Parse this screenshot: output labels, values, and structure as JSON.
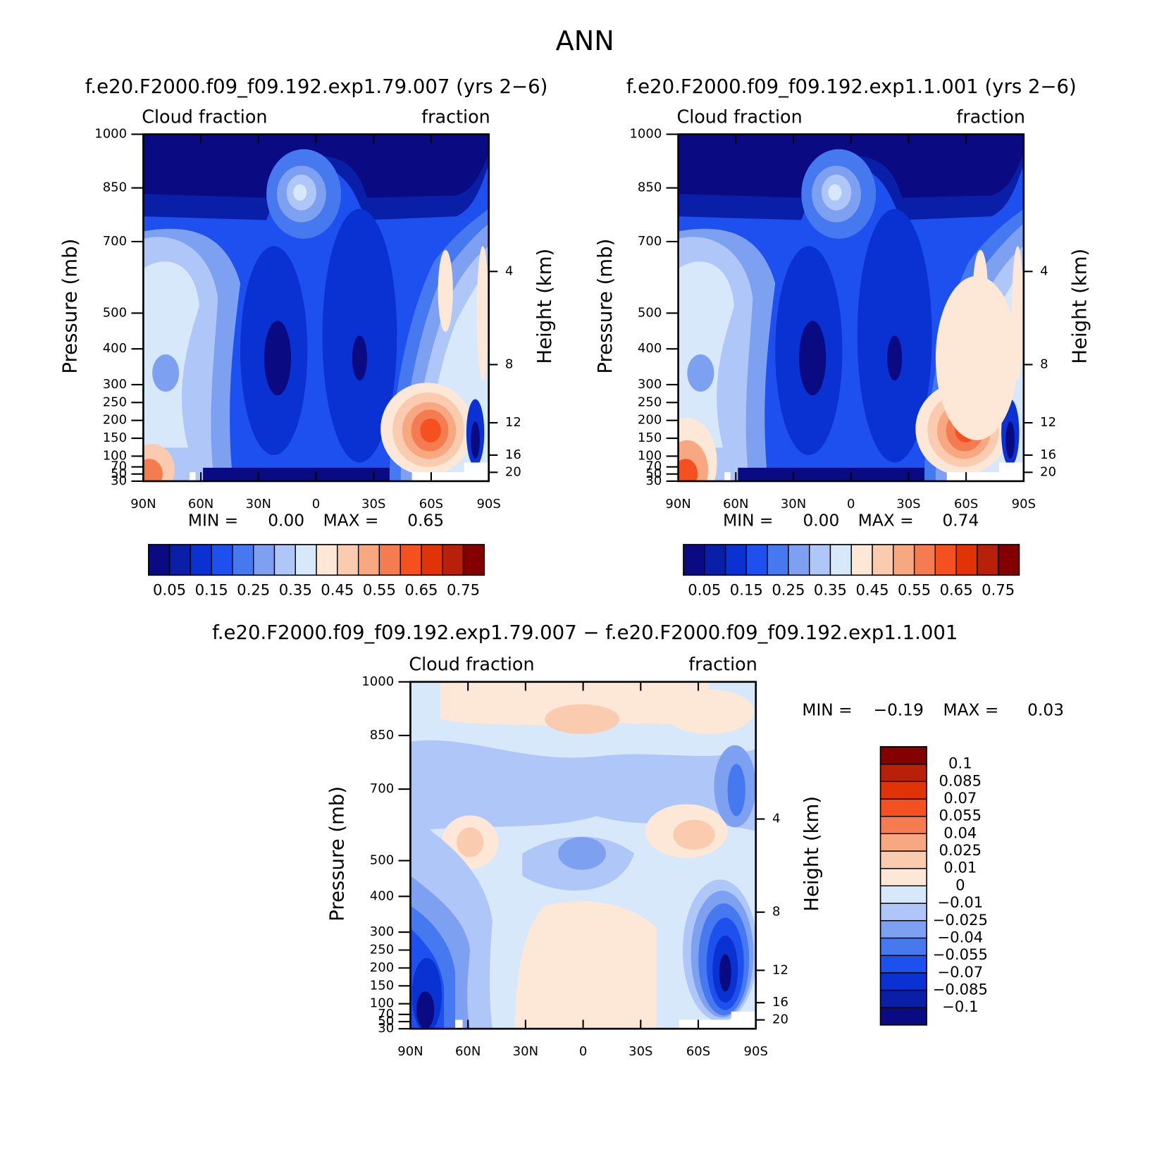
{
  "title": "ANN",
  "chart_data": [
    {
      "type": "contour",
      "title": "f.e20.F2000.f09_f09.192.exp1.79.007 (yrs 2−6)",
      "left_label": "Cloud fraction",
      "right_label": "fraction",
      "ylabel": "Pressure (mb)",
      "y2label": "Height (km)",
      "xlim": [
        90,
        -90
      ],
      "xticks": [
        {
          "value": 90,
          "label": "90N"
        },
        {
          "value": 60,
          "label": "60N"
        },
        {
          "value": 30,
          "label": "30N"
        },
        0,
        {
          "value": -30,
          "label": "30S"
        },
        {
          "value": -60,
          "label": "60S"
        },
        {
          "value": -90,
          "label": "90S"
        }
      ],
      "ylim": [
        1000,
        30
      ],
      "yticks": [
        30,
        50,
        70,
        100,
        150,
        200,
        250,
        300,
        400,
        500,
        700,
        850,
        1000
      ],
      "y2ticks": [
        4,
        8,
        12,
        16,
        20
      ],
      "stats": {
        "min_text": "MIN =",
        "min": {
          "value": 0,
          "label": "0.00"
        },
        "max_text": "MAX =",
        "max": 0.65
      },
      "colorbar": {
        "orientation": "horizontal",
        "label_every": 2,
        "levels": [
          0.05,
          0.1,
          0.15,
          0.2,
          0.25,
          0.3,
          0.35,
          0.4,
          0.45,
          0.5,
          0.55,
          0.6,
          0.65,
          0.7,
          0.75
        ],
        "colors": [
          "#0a0a82",
          "#0a1fa8",
          "#0a32d2",
          "#1e50f0",
          "#4678f0",
          "#7ea0f0",
          "#aec6f8",
          "#d6e8fa",
          "#fde8d8",
          "#fbcbb0",
          "#f8a880",
          "#f57c50",
          "#f55020",
          "#e03308",
          "#b8200a",
          "#840000"
        ]
      }
    },
    {
      "type": "contour",
      "title": "f.e20.F2000.f09_f09.192.exp1.1.001 (yrs 2−6)",
      "left_label": "Cloud fraction",
      "right_label": "fraction",
      "ylabel": "Pressure (mb)",
      "y2label": "Height (km)",
      "xlim": [
        90,
        -90
      ],
      "xticks": [
        {
          "value": 90,
          "label": "90N"
        },
        {
          "value": 60,
          "label": "60N"
        },
        {
          "value": 30,
          "label": "30N"
        },
        0,
        {
          "value": -30,
          "label": "30S"
        },
        {
          "value": -60,
          "label": "60S"
        },
        {
          "value": -90,
          "label": "90S"
        }
      ],
      "ylim": [
        1000,
        30
      ],
      "yticks": [
        30,
        50,
        70,
        100,
        150,
        200,
        250,
        300,
        400,
        500,
        700,
        850,
        1000
      ],
      "y2ticks": [
        4,
        8,
        12,
        16,
        20
      ],
      "stats": {
        "min_text": "MIN =",
        "min": {
          "value": 0,
          "label": "0.00"
        },
        "max_text": "MAX =",
        "max": 0.74
      },
      "colorbar": {
        "orientation": "horizontal",
        "label_every": 2,
        "levels": [
          0.05,
          0.1,
          0.15,
          0.2,
          0.25,
          0.3,
          0.35,
          0.4,
          0.45,
          0.5,
          0.55,
          0.6,
          0.65,
          0.7,
          0.75
        ],
        "colors": [
          "#0a0a82",
          "#0a1fa8",
          "#0a32d2",
          "#1e50f0",
          "#4678f0",
          "#7ea0f0",
          "#aec6f8",
          "#d6e8fa",
          "#fde8d8",
          "#fbcbb0",
          "#f8a880",
          "#f57c50",
          "#f55020",
          "#e03308",
          "#b8200a",
          "#840000"
        ]
      }
    },
    {
      "type": "contour",
      "title": "f.e20.F2000.f09_f09.192.exp1.79.007 − f.e20.F2000.f09_f09.192.exp1.1.001",
      "left_label": "Cloud fraction",
      "right_label": "fraction",
      "ylabel": "Pressure (mb)",
      "y2label": "Height (km)",
      "xlim": [
        90,
        -90
      ],
      "xticks": [
        {
          "value": 90,
          "label": "90N"
        },
        {
          "value": 60,
          "label": "60N"
        },
        {
          "value": 30,
          "label": "30N"
        },
        0,
        {
          "value": -30,
          "label": "30S"
        },
        {
          "value": -60,
          "label": "60S"
        },
        {
          "value": -90,
          "label": "90S"
        }
      ],
      "ylim": [
        1000,
        30
      ],
      "yticks": [
        30,
        50,
        70,
        100,
        150,
        200,
        250,
        300,
        400,
        500,
        700,
        850,
        1000
      ],
      "y2ticks": [
        4,
        8,
        12,
        16,
        20
      ],
      "stats": {
        "min_text": "MIN =",
        "min": {
          "value": -0.19,
          "label": "−0.19"
        },
        "max_text": "MAX =",
        "max": 0.03
      },
      "colorbar": {
        "orientation": "vertical",
        "label_every": 1,
        "levels": [
          {
            "value": -0.1,
            "label": "−0.1"
          },
          {
            "value": -0.085,
            "label": "−0.085"
          },
          {
            "value": -0.07,
            "label": "−0.07"
          },
          {
            "value": -0.055,
            "label": "−0.055"
          },
          {
            "value": -0.04,
            "label": "−0.04"
          },
          {
            "value": -0.025,
            "label": "−0.025"
          },
          {
            "value": -0.01,
            "label": "−0.01"
          },
          0,
          0.01,
          0.025,
          0.04,
          0.055,
          0.07,
          0.085,
          0.1
        ],
        "colors": [
          "#0a0a82",
          "#0a1fa8",
          "#0a32d2",
          "#1e50f0",
          "#4678f0",
          "#7ea0f0",
          "#aec6f8",
          "#d6e8fa",
          "#fde8d8",
          "#fbcbb0",
          "#f8a880",
          "#f57c50",
          "#f55020",
          "#e03308",
          "#b8200a",
          "#840000"
        ]
      }
    }
  ]
}
